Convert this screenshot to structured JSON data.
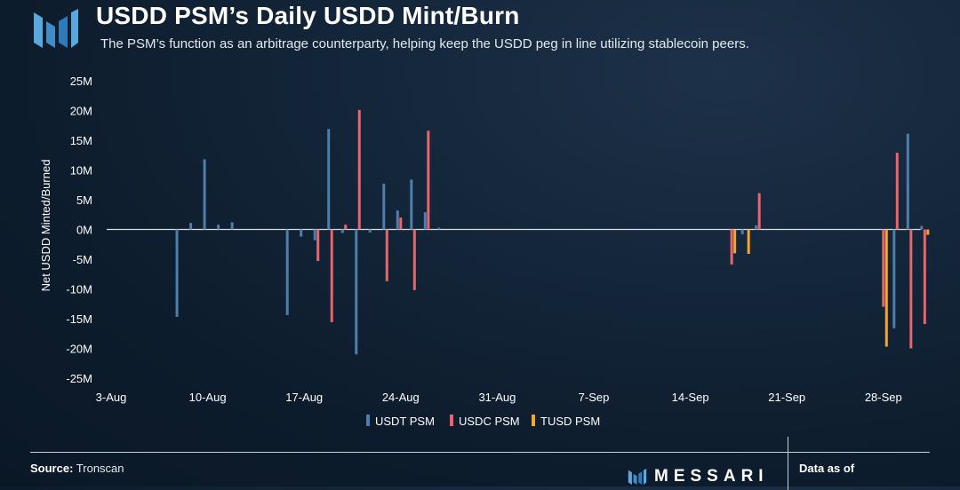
{
  "header": {
    "title": "USDD PSM’s Daily USDD Mint/Burn",
    "subtitle": "The PSM’s function as an arbitrage counterparty, helping keep the USDD peg in line utilizing stablecoin peers."
  },
  "footer": {
    "source_label": "Source:",
    "source_value": "Tronscan",
    "brand": "MESSARI",
    "data_as_of": "Data as of"
  },
  "colors": {
    "usdt": "#4e7eac",
    "usdc": "#e9646b",
    "tusd": "#f2a62d",
    "baseline": "#d6dde5"
  },
  "chart_data": {
    "type": "bar",
    "ylabel": "Net USDD Minted/Burned",
    "ylim": [
      -25000000,
      25000000
    ],
    "yticks": [
      25000000,
      20000000,
      15000000,
      10000000,
      5000000,
      0,
      -5000000,
      -10000000,
      -15000000,
      -20000000,
      -25000000
    ],
    "ytick_labels": [
      "25M",
      "20M",
      "15M",
      "10M",
      "5M",
      "0M",
      "-5M",
      "-10M",
      "-15M",
      "-20M",
      "-25M"
    ],
    "xticks": [
      "3-Aug",
      "10-Aug",
      "17-Aug",
      "24-Aug",
      "31-Aug",
      "7-Sep",
      "14-Sep",
      "21-Sep",
      "28-Sep"
    ],
    "grid": false,
    "legend": "bottom",
    "series": [
      {
        "name": "USDT PSM",
        "color": "#4e7eac",
        "points": [
          {
            "date": "2022-08-08",
            "value": -14700000
          },
          {
            "date": "2022-08-09",
            "value": 1100000
          },
          {
            "date": "2022-08-10",
            "value": 11800000
          },
          {
            "date": "2022-08-11",
            "value": 800000
          },
          {
            "date": "2022-08-12",
            "value": 1200000
          },
          {
            "date": "2022-08-16",
            "value": -14400000
          },
          {
            "date": "2022-08-17",
            "value": -1200000
          },
          {
            "date": "2022-08-18",
            "value": -1800000
          },
          {
            "date": "2022-08-19",
            "value": 16900000
          },
          {
            "date": "2022-08-20",
            "value": -600000
          },
          {
            "date": "2022-08-21",
            "value": -21000000
          },
          {
            "date": "2022-08-22",
            "value": -500000
          },
          {
            "date": "2022-08-23",
            "value": 7700000
          },
          {
            "date": "2022-08-24",
            "value": 3200000
          },
          {
            "date": "2022-08-25",
            "value": 8400000
          },
          {
            "date": "2022-08-26",
            "value": 2900000
          },
          {
            "date": "2022-08-27",
            "value": 300000
          },
          {
            "date": "2022-09-18",
            "value": -800000
          },
          {
            "date": "2022-09-19",
            "value": 700000
          },
          {
            "date": "2022-09-29",
            "value": -16600000
          },
          {
            "date": "2022-09-30",
            "value": 16100000
          },
          {
            "date": "2022-10-01",
            "value": 600000
          }
        ]
      },
      {
        "name": "USDC PSM",
        "color": "#e9646b",
        "points": [
          {
            "date": "2022-08-18",
            "value": -5300000
          },
          {
            "date": "2022-08-19",
            "value": -15600000
          },
          {
            "date": "2022-08-20",
            "value": 800000
          },
          {
            "date": "2022-08-21",
            "value": 20100000
          },
          {
            "date": "2022-08-23",
            "value": -8700000
          },
          {
            "date": "2022-08-24",
            "value": 2000000
          },
          {
            "date": "2022-08-25",
            "value": -10200000
          },
          {
            "date": "2022-08-26",
            "value": 16600000
          },
          {
            "date": "2022-09-17",
            "value": -5900000
          },
          {
            "date": "2022-09-19",
            "value": 6100000
          },
          {
            "date": "2022-09-28",
            "value": -13000000
          },
          {
            "date": "2022-09-29",
            "value": 12900000
          },
          {
            "date": "2022-09-30",
            "value": -20000000
          },
          {
            "date": "2022-10-01",
            "value": -15900000
          }
        ]
      },
      {
        "name": "TUSD PSM",
        "color": "#f2a62d",
        "points": [
          {
            "date": "2022-09-17",
            "value": -4000000
          },
          {
            "date": "2022-09-18",
            "value": -4100000
          },
          {
            "date": "2022-09-28",
            "value": -19700000
          },
          {
            "date": "2022-10-01",
            "value": -900000
          }
        ]
      }
    ]
  }
}
